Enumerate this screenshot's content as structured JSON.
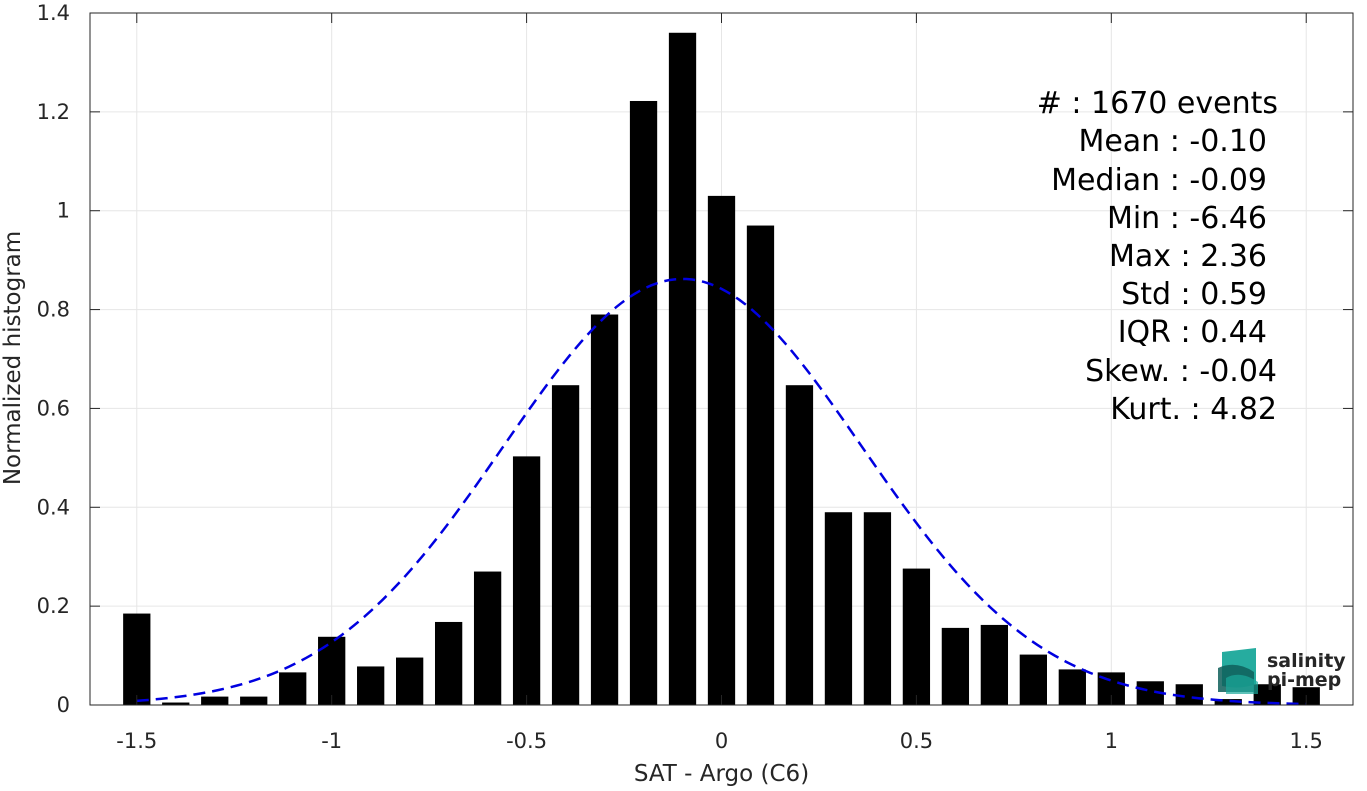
{
  "chart_data": {
    "type": "bar",
    "xlabel": "SAT - Argo (C6)",
    "ylabel": "Normalized histogram",
    "xlim": [
      -1.62,
      1.62
    ],
    "ylim": [
      0,
      1.4
    ],
    "grid": true,
    "x_ticks": [
      -1.5,
      -1,
      -0.5,
      0,
      0.5,
      1,
      1.5
    ],
    "x_tick_labels": [
      "-1.5",
      "-1",
      "-0.5",
      "0",
      "0.5",
      "1",
      "1.5"
    ],
    "y_ticks": [
      0,
      0.2,
      0.4,
      0.6,
      0.8,
      1,
      1.2,
      1.4
    ],
    "y_tick_labels": [
      "0",
      "0.2",
      "0.4",
      "0.6",
      "0.8",
      "1",
      "1.2",
      "1.4"
    ],
    "bar_width": 0.07,
    "bins": [
      -1.5,
      -1.4,
      -1.3,
      -1.2,
      -1.1,
      -1.0,
      -0.9,
      -0.8,
      -0.7,
      -0.6,
      -0.5,
      -0.4,
      -0.3,
      -0.2,
      -0.1,
      0.0,
      0.1,
      0.2,
      0.3,
      0.4,
      0.5,
      0.6,
      0.7,
      0.8,
      0.9,
      1.0,
      1.1,
      1.2,
      1.3,
      1.4,
      1.5
    ],
    "values": [
      0.185,
      0.005,
      0.017,
      0.017,
      0.066,
      0.138,
      0.078,
      0.096,
      0.168,
      0.27,
      0.503,
      0.647,
      0.79,
      1.222,
      1.36,
      1.03,
      0.97,
      0.647,
      0.39,
      0.39,
      0.276,
      0.156,
      0.162,
      0.102,
      0.072,
      0.066,
      0.048,
      0.042,
      0.012,
      0.042,
      0.036
    ],
    "bar_color": "#000000",
    "fit": {
      "type": "gaussian",
      "mean": -0.1,
      "std": 0.46,
      "peak": 0.862,
      "color": "#0000e0",
      "style": "dashed",
      "x_range": [
        -1.5,
        1.5
      ]
    }
  },
  "stats": {
    "events": "#  : 1670 events",
    "mean": "Mean : -0.10",
    "median": "Median : -0.09",
    "min": "Min : -6.46",
    "max": "Max : 2.36",
    "std": "Std : 0.59",
    "iqr": "IQR : 0.44",
    "skew": "Skew. : -0.04",
    "kurt": "Kurt. : 4.82"
  },
  "logo": {
    "line1": "salinity",
    "line2": "pi-mep",
    "color_primary": "#1aa89a",
    "color_secondary": "#0f5f5a"
  }
}
